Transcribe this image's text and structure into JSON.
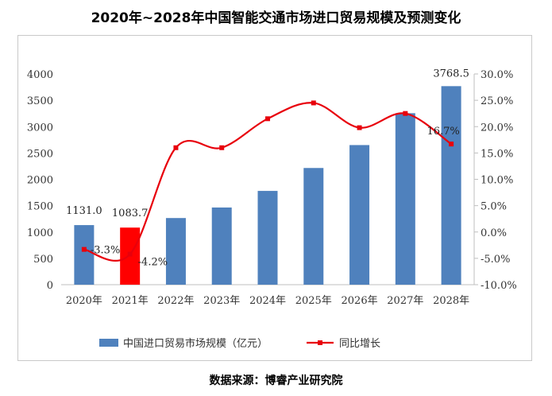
{
  "chart_data": {
    "type": "bar",
    "title": "2020年~2028年中国智能交通市场进口贸易规模及预测变化",
    "categories": [
      "2020年",
      "2021年",
      "2022年",
      "2023年",
      "2024年",
      "2025年",
      "2026年",
      "2027年",
      "2028年"
    ],
    "series": [
      {
        "name": "中国进口贸易市场规模（亿元）",
        "type": "bar",
        "axis": "left",
        "color": "#4f81bd",
        "highlight_color": "#ff0000",
        "highlight_index": 1,
        "values": [
          1131.0,
          1083.7,
          1265,
          1465,
          1780,
          2215,
          2650,
          3255,
          3768.5
        ]
      },
      {
        "name": "同比增长",
        "type": "line",
        "axis": "right",
        "color": "#e8000b",
        "values": [
          -3.3,
          -4.2,
          16.0,
          16.0,
          21.5,
          24.5,
          19.8,
          22.5,
          16.7
        ]
      }
    ],
    "data_labels": {
      "bars": [
        {
          "index": 0,
          "text": "1131.0"
        },
        {
          "index": 1,
          "text": "1083.7"
        },
        {
          "index": 8,
          "text": "3768.5"
        }
      ],
      "line": [
        {
          "index": 0,
          "text": "-3.3%"
        },
        {
          "index": 1,
          "text": "-4.2%"
        },
        {
          "index": 8,
          "text": "16.7%"
        }
      ]
    },
    "left_axis": {
      "min": 0,
      "max": 4000,
      "step": 500,
      "ticks": [
        "0",
        "500",
        "1000",
        "1500",
        "2000",
        "2500",
        "3000",
        "3500",
        "4000"
      ]
    },
    "right_axis": {
      "min": -10,
      "max": 30,
      "step": 5,
      "ticks": [
        "-10.0%",
        "-5.0%",
        "0.0%",
        "5.0%",
        "10.0%",
        "15.0%",
        "20.0%",
        "25.0%",
        "30.0%"
      ]
    },
    "legend_position": "bottom",
    "grid": false
  },
  "source": "数据来源：博睿产业研究院"
}
